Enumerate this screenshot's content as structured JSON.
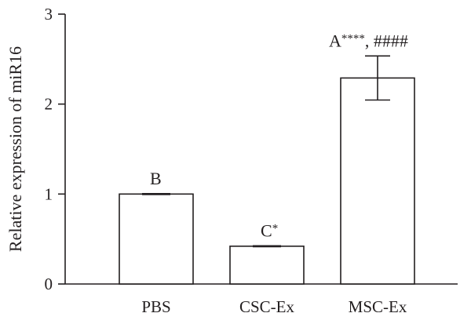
{
  "chart_data": {
    "type": "bar",
    "categories": [
      "PBS",
      "CSC-Ex",
      "MSC-Ex"
    ],
    "values": [
      1.0,
      0.42,
      2.29
    ],
    "error": [
      0.005,
      0.005,
      0.245
    ],
    "annotations": [
      {
        "letter": "B",
        "marks": ""
      },
      {
        "letter": "C",
        "marks": "*"
      },
      {
        "letter": "A",
        "marks": "****, ####"
      }
    ],
    "ylabel": "Relative expression of miR16",
    "xlabel": "",
    "ylim": [
      0,
      3
    ],
    "yticks": [
      0,
      1,
      2,
      3
    ],
    "grid": false,
    "legend": "none"
  },
  "colors": {
    "ink": "#231f20",
    "bar_fill": "#ffffff"
  }
}
